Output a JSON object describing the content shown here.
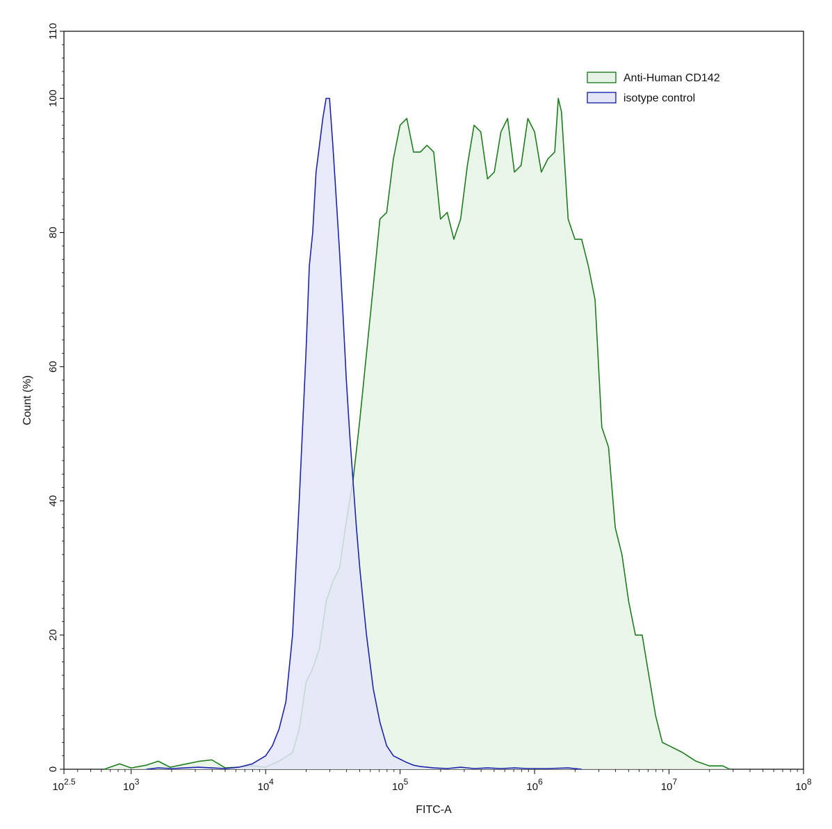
{
  "chart_data": {
    "type": "area",
    "xlabel": "FITC-A",
    "ylabel": "Count  (%)",
    "xscale": "log10",
    "xlim": [
      316.23,
      100000000
    ],
    "ylim": [
      0,
      110
    ],
    "x_ticks": [
      {
        "value": 316.23,
        "base": "10",
        "exp": "2.5"
      },
      {
        "value": 1000,
        "base": "10",
        "exp": "3"
      },
      {
        "value": 10000,
        "base": "10",
        "exp": "4"
      },
      {
        "value": 100000,
        "base": "10",
        "exp": "5"
      },
      {
        "value": 1000000,
        "base": "10",
        "exp": "6"
      },
      {
        "value": 10000000,
        "base": "10",
        "exp": "7"
      },
      {
        "value": 100000000,
        "base": "10",
        "exp": "8"
      }
    ],
    "y_ticks": [
      0,
      20,
      40,
      60,
      80,
      100,
      110
    ],
    "grid": false,
    "legend_position": "top-right",
    "series": [
      {
        "name": "Anti-Human CD142",
        "stroke": "#1e7b1e",
        "fill": "#e6f3e6",
        "points": [
          [
            630,
            0
          ],
          [
            820,
            0.8
          ],
          [
            1000,
            0.2
          ],
          [
            1290,
            0.6
          ],
          [
            1590,
            1.2
          ],
          [
            1950,
            0.3
          ],
          [
            2570,
            0.8
          ],
          [
            3240,
            1.2
          ],
          [
            3980,
            1.4
          ],
          [
            5010,
            0.2
          ],
          [
            6310,
            0.3
          ],
          [
            7940,
            0.5
          ],
          [
            10000,
            0.3
          ],
          [
            12590,
            1.2
          ],
          [
            15850,
            2.5
          ],
          [
            17780,
            6
          ],
          [
            20000,
            13
          ],
          [
            22390,
            15
          ],
          [
            25120,
            18
          ],
          [
            28180,
            25
          ],
          [
            31620,
            28
          ],
          [
            35480,
            30
          ],
          [
            39810,
            37
          ],
          [
            44670,
            43
          ],
          [
            50120,
            52
          ],
          [
            56230,
            62
          ],
          [
            63100,
            72
          ],
          [
            70790,
            82
          ],
          [
            79430,
            83
          ],
          [
            89130,
            91
          ],
          [
            100000,
            96
          ],
          [
            112200,
            97
          ],
          [
            125900,
            92
          ],
          [
            141300,
            92
          ],
          [
            158500,
            93
          ],
          [
            177800,
            92
          ],
          [
            199500,
            82
          ],
          [
            223900,
            83
          ],
          [
            251200,
            79
          ],
          [
            281800,
            82
          ],
          [
            316200,
            90
          ],
          [
            354800,
            96
          ],
          [
            398100,
            95
          ],
          [
            446700,
            88
          ],
          [
            501200,
            89
          ],
          [
            562300,
            95
          ],
          [
            630000,
            97
          ],
          [
            707900,
            89
          ],
          [
            794300,
            90
          ],
          [
            891300,
            97
          ],
          [
            1000000,
            95
          ],
          [
            1122000,
            89
          ],
          [
            1259000,
            91
          ],
          [
            1413000,
            92
          ],
          [
            1500000,
            100
          ],
          [
            1585000,
            98
          ],
          [
            1778000,
            82
          ],
          [
            1995000,
            79
          ],
          [
            2239000,
            79
          ],
          [
            2512000,
            75
          ],
          [
            2818000,
            70
          ],
          [
            3162000,
            51
          ],
          [
            3548000,
            48
          ],
          [
            3981000,
            36
          ],
          [
            4467000,
            32
          ],
          [
            5012000,
            25
          ],
          [
            5623000,
            20
          ],
          [
            6310000,
            20
          ],
          [
            7079000,
            14
          ],
          [
            7943000,
            8
          ],
          [
            8913000,
            4
          ],
          [
            10000000,
            3.5
          ],
          [
            11220000,
            3
          ],
          [
            12590000,
            2.5
          ],
          [
            15850000,
            1.2
          ],
          [
            19950000,
            0.5
          ],
          [
            25120000,
            0.5
          ],
          [
            28180000,
            0
          ]
        ]
      },
      {
        "name": "isotype control",
        "stroke": "#1c24a8",
        "fill": "#e4e6f8",
        "points": [
          [
            1300,
            0
          ],
          [
            1590,
            0.2
          ],
          [
            2000,
            0.1
          ],
          [
            2510,
            0.2
          ],
          [
            3160,
            0.3
          ],
          [
            3980,
            0.2
          ],
          [
            5010,
            0.1
          ],
          [
            6310,
            0.3
          ],
          [
            7940,
            0.8
          ],
          [
            10000,
            2
          ],
          [
            11220,
            3.5
          ],
          [
            12590,
            6
          ],
          [
            14130,
            10
          ],
          [
            15850,
            20
          ],
          [
            17780,
            40
          ],
          [
            19950,
            62
          ],
          [
            21130,
            75
          ],
          [
            22390,
            80
          ],
          [
            23710,
            89
          ],
          [
            25120,
            93
          ],
          [
            26610,
            97
          ],
          [
            28180,
            100
          ],
          [
            29850,
            100
          ],
          [
            31620,
            93
          ],
          [
            33500,
            85
          ],
          [
            35480,
            77
          ],
          [
            37580,
            68
          ],
          [
            39810,
            58
          ],
          [
            42170,
            50
          ],
          [
            44670,
            43
          ],
          [
            47320,
            36
          ],
          [
            50120,
            30
          ],
          [
            53090,
            25
          ],
          [
            56230,
            20
          ],
          [
            63100,
            12
          ],
          [
            70790,
            7
          ],
          [
            79430,
            3.5
          ],
          [
            89130,
            2
          ],
          [
            100000,
            1.5
          ],
          [
            112200,
            1
          ],
          [
            125900,
            0.6
          ],
          [
            141300,
            0.4
          ],
          [
            177800,
            0.2
          ],
          [
            223900,
            0.1
          ],
          [
            281800,
            0.3
          ],
          [
            354800,
            0.1
          ],
          [
            446700,
            0.2
          ],
          [
            562300,
            0.1
          ],
          [
            707900,
            0.2
          ],
          [
            891300,
            0.1
          ],
          [
            1259000,
            0.1
          ],
          [
            1778000,
            0.2
          ],
          [
            2239000,
            0
          ]
        ]
      }
    ]
  }
}
